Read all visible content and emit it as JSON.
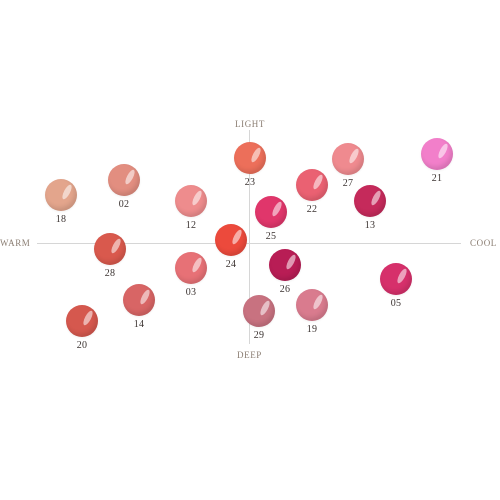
{
  "axes": {
    "top_label": "LIGHT",
    "bottom_label": "DEEP",
    "left_label": "WARM",
    "right_label": "COOL"
  },
  "shades": [
    {
      "id": "18",
      "color": "#e3a58c"
    },
    {
      "id": "02",
      "color": "#e28e80"
    },
    {
      "id": "12",
      "color": "#ee8c8d"
    },
    {
      "id": "23",
      "color": "#ec6f5a"
    },
    {
      "id": "22",
      "color": "#ea6172"
    },
    {
      "id": "27",
      "color": "#ef8a8f"
    },
    {
      "id": "21",
      "color": "#f27fca"
    },
    {
      "id": "13",
      "color": "#c52a5b"
    },
    {
      "id": "25",
      "color": "#e0366b"
    },
    {
      "id": "28",
      "color": "#d9594d"
    },
    {
      "id": "24",
      "color": "#ec4a3c"
    },
    {
      "id": "03",
      "color": "#e77176"
    },
    {
      "id": "26",
      "color": "#b81d55"
    },
    {
      "id": "05",
      "color": "#d6306b"
    },
    {
      "id": "14",
      "color": "#d86565"
    },
    {
      "id": "29",
      "color": "#c87280"
    },
    {
      "id": "19",
      "color": "#d97b8e"
    },
    {
      "id": "20",
      "color": "#d5584e"
    }
  ]
}
